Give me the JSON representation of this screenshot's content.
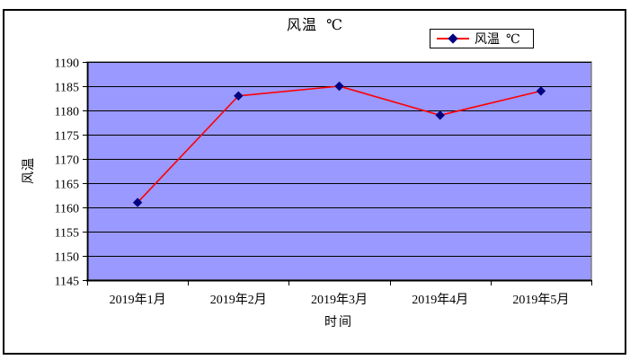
{
  "chart_data": {
    "type": "line",
    "title": "风温  ℃",
    "categories": [
      "2019年1月",
      "2019年2月",
      "2019年3月",
      "2019年4月",
      "2019年5月"
    ],
    "series": [
      {
        "name": "风温  ℃",
        "values": [
          1161,
          1183,
          1185,
          1179,
          1184
        ]
      }
    ],
    "xlabel": "时间",
    "ylabel": "风温",
    "ylim": [
      1145,
      1190
    ],
    "ytick_step": 5,
    "yticks": [
      1145,
      1150,
      1155,
      1160,
      1165,
      1170,
      1175,
      1180,
      1185,
      1190
    ],
    "grid": "horizontal gridlines on",
    "legend_position": "top-right",
    "marker": "diamond",
    "colors": {
      "plot_bg": "#9999FF",
      "gridline": "#000000",
      "axis": "#000000",
      "series_line": "#FF0000",
      "marker": "#000080",
      "plot_border": "#808080",
      "frame_border": "#000000",
      "text": "#000000",
      "background": "#FFFFFF"
    }
  }
}
